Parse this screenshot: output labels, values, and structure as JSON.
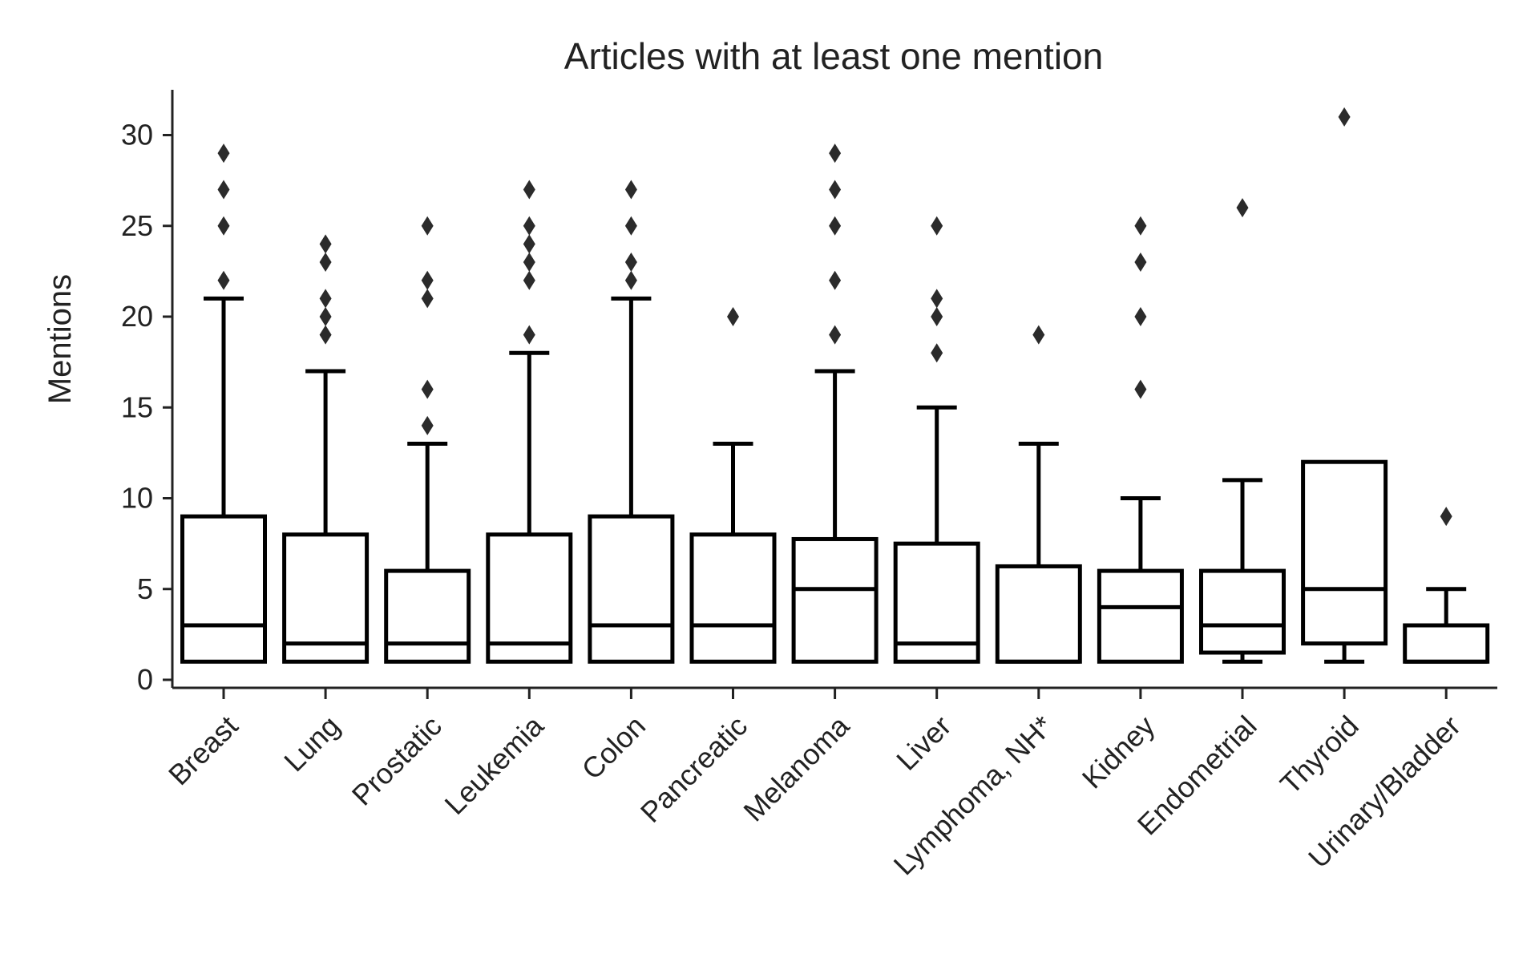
{
  "chart_data": {
    "type": "box",
    "title": "Articles with at least one mention",
    "xlabel": "",
    "ylabel": "Mentions",
    "ylim": [
      -0.5,
      32.5
    ],
    "yticks": [
      0,
      5,
      10,
      15,
      20,
      25,
      30
    ],
    "grid": false,
    "legend": "none",
    "categories": [
      "Breast",
      "Lung",
      "Prostatic",
      "Leukemia",
      "Colon",
      "Pancreatic",
      "Melanoma",
      "Liver",
      "Lymphoma, NH*",
      "Kidney",
      "Endometrial",
      "Thyroid",
      "Urinary/Bladder"
    ],
    "boxes": [
      {
        "whisker_low": 1,
        "q1": 1,
        "median": 3,
        "q3": 9,
        "whisker_high": 21,
        "outliers": [
          22,
          25,
          27,
          29
        ]
      },
      {
        "whisker_low": 1,
        "q1": 1,
        "median": 2,
        "q3": 8,
        "whisker_high": 17,
        "outliers": [
          19,
          20,
          21,
          23,
          24
        ]
      },
      {
        "whisker_low": 1,
        "q1": 1,
        "median": 2,
        "q3": 6,
        "whisker_high": 13,
        "outliers": [
          14,
          16,
          21,
          22,
          25
        ]
      },
      {
        "whisker_low": 1,
        "q1": 1,
        "median": 2,
        "q3": 8,
        "whisker_high": 18,
        "outliers": [
          19,
          22,
          23,
          24,
          25,
          27
        ]
      },
      {
        "whisker_low": 1,
        "q1": 1,
        "median": 3,
        "q3": 9,
        "whisker_high": 21,
        "outliers": [
          22,
          23,
          25,
          27
        ]
      },
      {
        "whisker_low": 1,
        "q1": 1,
        "median": 3,
        "q3": 8,
        "whisker_high": 13,
        "outliers": [
          20
        ]
      },
      {
        "whisker_low": 1,
        "q1": 1,
        "median": 5,
        "q3": 7.75,
        "whisker_high": 17,
        "outliers": [
          19,
          22,
          25,
          27,
          29
        ]
      },
      {
        "whisker_low": 1,
        "q1": 1,
        "median": 2,
        "q3": 7.5,
        "whisker_high": 15,
        "outliers": [
          18,
          20,
          21,
          25
        ]
      },
      {
        "whisker_low": 1,
        "q1": 1,
        "median": 1,
        "q3": 6.25,
        "whisker_high": 13,
        "outliers": [
          19
        ]
      },
      {
        "whisker_low": 1,
        "q1": 1,
        "median": 4,
        "q3": 6,
        "whisker_high": 10,
        "outliers": [
          16,
          20,
          23,
          25
        ]
      },
      {
        "whisker_low": 1,
        "q1": 1.5,
        "median": 3,
        "q3": 6,
        "whisker_high": 11,
        "outliers": [
          26
        ]
      },
      {
        "whisker_low": 1,
        "q1": 2,
        "median": 5,
        "q3": 12,
        "whisker_high": 12,
        "outliers": [
          31
        ]
      },
      {
        "whisker_low": 1,
        "q1": 1,
        "median": 1,
        "q3": 3,
        "whisker_high": 5,
        "outliers": [
          9
        ]
      }
    ],
    "colors": {
      "box_stroke": "#000000",
      "box_fill": "#ffffff",
      "outlier": "#2b2b2b",
      "axis": "#222222"
    }
  }
}
